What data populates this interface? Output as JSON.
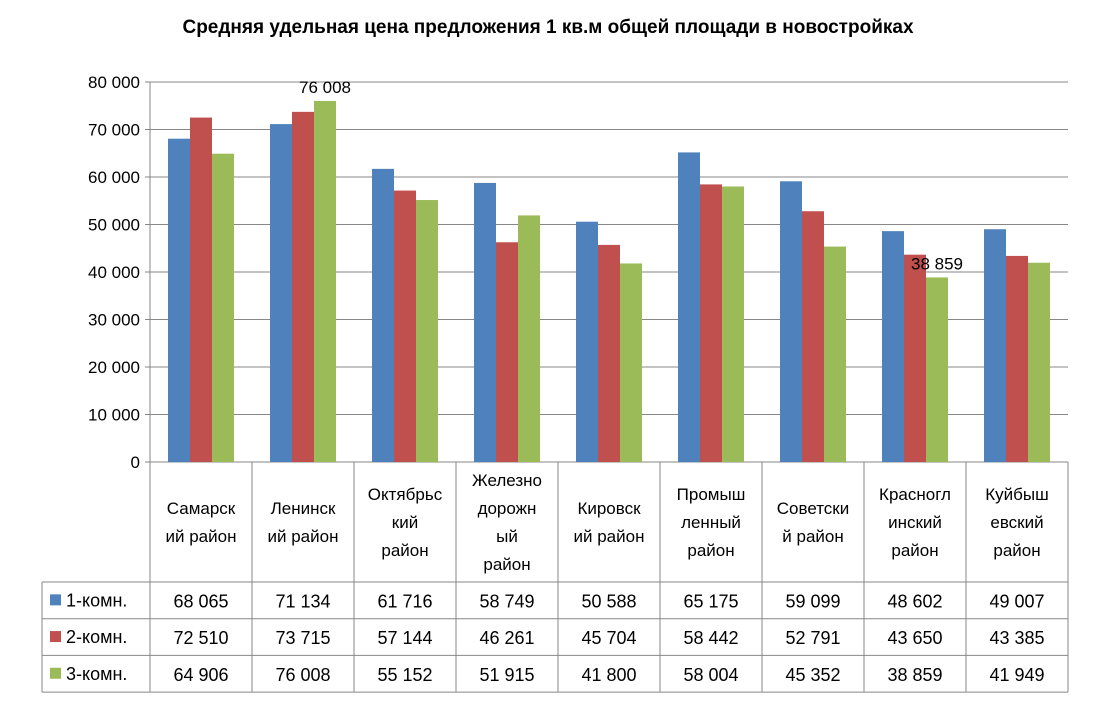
{
  "chart_data": {
    "type": "bar",
    "title": "Средняя удельная цена предложения 1 кв.м общей площади в новостройках",
    "categories": [
      [
        "Самарск",
        "ий район"
      ],
      [
        "Ленинск",
        "ий район"
      ],
      [
        "Октябрьс",
        "кий",
        "район"
      ],
      [
        "Железно",
        "дорожн",
        "ый",
        "район"
      ],
      [
        "Кировск",
        "ий район"
      ],
      [
        "Промыш",
        "ленный",
        "район"
      ],
      [
        "Советски",
        "й район"
      ],
      [
        "Красногл",
        "инский",
        "район"
      ],
      [
        "Куйбыш",
        "евский",
        "район"
      ]
    ],
    "series": [
      {
        "name": "1-комн.",
        "color": "#4F81BD",
        "values": [
          68065,
          71134,
          61716,
          58749,
          50588,
          65175,
          59099,
          48602,
          49007
        ],
        "labels": [
          "68 065",
          "71 134",
          "61 716",
          "58 749",
          "50 588",
          "65 175",
          "59 099",
          "48 602",
          "49 007"
        ]
      },
      {
        "name": "2-комн.",
        "color": "#C0504D",
        "values": [
          72510,
          73715,
          57144,
          46261,
          45704,
          58442,
          52791,
          43650,
          43385
        ],
        "labels": [
          "72 510",
          "73 715",
          "57 144",
          "46 261",
          "45 704",
          "58 442",
          "52 791",
          "43 650",
          "43 385"
        ]
      },
      {
        "name": "3-комн.",
        "color": "#9BBB59",
        "values": [
          64906,
          76008,
          55152,
          51915,
          41800,
          58004,
          45352,
          38859,
          41949
        ],
        "labels": [
          "64 906",
          "76 008",
          "55 152",
          "51 915",
          "41 800",
          "58 004",
          "45 352",
          "38 859",
          "41 949"
        ]
      }
    ],
    "ylim": [
      0,
      80000
    ],
    "yticks": [
      0,
      10000,
      20000,
      30000,
      40000,
      50000,
      60000,
      70000,
      80000
    ],
    "ytick_labels": [
      "0",
      "10 000",
      "20 000",
      "30 000",
      "40 000",
      "50 000",
      "60 000",
      "70 000",
      "80 000"
    ],
    "grid": true,
    "legend": "data-table",
    "data_labels": [
      {
        "series": 2,
        "category": 1,
        "text": "76 008"
      },
      {
        "series": 2,
        "category": 7,
        "text": "38 859"
      }
    ]
  }
}
